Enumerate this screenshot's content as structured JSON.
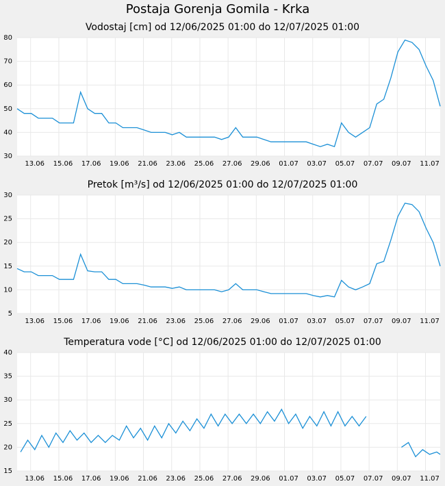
{
  "title": "Postaja Gorenja Gomila - Krka",
  "chart_data": [
    {
      "type": "line",
      "title": "Vodostaj [cm] od 12/06/2025 01:00 do 12/07/2025 01:00",
      "x": [
        "2025-06-12T01:00",
        "2025-06-12T13:00",
        "2025-06-13T01:00",
        "2025-06-13T13:00",
        "2025-06-14T01:00",
        "2025-06-14T13:00",
        "2025-06-15T01:00",
        "2025-06-15T13:00",
        "2025-06-16T01:00",
        "2025-06-16T13:00",
        "2025-06-17T01:00",
        "2025-06-17T13:00",
        "2025-06-18T01:00",
        "2025-06-18T13:00",
        "2025-06-19T01:00",
        "2025-06-19T13:00",
        "2025-06-20T01:00",
        "2025-06-20T13:00",
        "2025-06-21T01:00",
        "2025-06-21T13:00",
        "2025-06-22T01:00",
        "2025-06-22T13:00",
        "2025-06-23T01:00",
        "2025-06-23T13:00",
        "2025-06-24T01:00",
        "2025-06-24T13:00",
        "2025-06-25T01:00",
        "2025-06-25T13:00",
        "2025-06-26T01:00",
        "2025-06-26T13:00",
        "2025-06-27T01:00",
        "2025-06-27T13:00",
        "2025-06-28T01:00",
        "2025-06-28T13:00",
        "2025-06-29T01:00",
        "2025-06-29T13:00",
        "2025-06-30T01:00",
        "2025-06-30T13:00",
        "2025-07-01T01:00",
        "2025-07-01T13:00",
        "2025-07-02T01:00",
        "2025-07-02T13:00",
        "2025-07-03T01:00",
        "2025-07-03T13:00",
        "2025-07-04T01:00",
        "2025-07-04T13:00",
        "2025-07-05T01:00",
        "2025-07-05T13:00",
        "2025-07-06T01:00",
        "2025-07-06T13:00",
        "2025-07-07T01:00",
        "2025-07-07T13:00",
        "2025-07-08T01:00",
        "2025-07-08T13:00",
        "2025-07-09T01:00",
        "2025-07-09T13:00",
        "2025-07-10T01:00",
        "2025-07-10T13:00",
        "2025-07-11T01:00",
        "2025-07-11T13:00",
        "2025-07-12T01:00"
      ],
      "series": [
        {
          "color": "#1a8fd6",
          "values": [
            50,
            48,
            48,
            46,
            46,
            46,
            44,
            44,
            44,
            57,
            50,
            48,
            48,
            44,
            44,
            42,
            42,
            42,
            41,
            40,
            40,
            40,
            39,
            40,
            38,
            38,
            38,
            38,
            38,
            37,
            38,
            42,
            38,
            38,
            38,
            37,
            36,
            36,
            36,
            36,
            36,
            36,
            35,
            34,
            35,
            34,
            44,
            40,
            38,
            40,
            42,
            52,
            54,
            63,
            74,
            79,
            78,
            75,
            68,
            62,
            51
          ]
        }
      ],
      "xlim": [
        "2025-06-12T01:00",
        "2025-07-12T01:00"
      ],
      "xticks": [
        {
          "value": "2025-06-13T00:00",
          "label": "13.06"
        },
        {
          "value": "2025-06-15T00:00",
          "label": "15.06"
        },
        {
          "value": "2025-06-17T00:00",
          "label": "17.06"
        },
        {
          "value": "2025-06-19T00:00",
          "label": "19.06"
        },
        {
          "value": "2025-06-21T00:00",
          "label": "21.06"
        },
        {
          "value": "2025-06-23T00:00",
          "label": "23.06"
        },
        {
          "value": "2025-06-25T00:00",
          "label": "25.06"
        },
        {
          "value": "2025-06-27T00:00",
          "label": "27.06"
        },
        {
          "value": "2025-06-29T00:00",
          "label": "29.06"
        },
        {
          "value": "2025-07-01T00:00",
          "label": "01.07"
        },
        {
          "value": "2025-07-03T00:00",
          "label": "03.07"
        },
        {
          "value": "2025-07-05T00:00",
          "label": "05.07"
        },
        {
          "value": "2025-07-07T00:00",
          "label": "07.07"
        },
        {
          "value": "2025-07-09T00:00",
          "label": "09.07"
        },
        {
          "value": "2025-07-11T00:00",
          "label": "11.07"
        }
      ],
      "ylim": [
        30,
        80
      ],
      "yticks": [
        30,
        40,
        50,
        60,
        70,
        80
      ],
      "grid": true
    },
    {
      "type": "line",
      "title": "Pretok [m³/s] od 12/06/2025 01:00 do 12/07/2025 01:00",
      "x": [
        "2025-06-12T01:00",
        "2025-06-12T13:00",
        "2025-06-13T01:00",
        "2025-06-13T13:00",
        "2025-06-14T01:00",
        "2025-06-14T13:00",
        "2025-06-15T01:00",
        "2025-06-15T13:00",
        "2025-06-16T01:00",
        "2025-06-16T13:00",
        "2025-06-17T01:00",
        "2025-06-17T13:00",
        "2025-06-18T01:00",
        "2025-06-18T13:00",
        "2025-06-19T01:00",
        "2025-06-19T13:00",
        "2025-06-20T01:00",
        "2025-06-20T13:00",
        "2025-06-21T01:00",
        "2025-06-21T13:00",
        "2025-06-22T01:00",
        "2025-06-22T13:00",
        "2025-06-23T01:00",
        "2025-06-23T13:00",
        "2025-06-24T01:00",
        "2025-06-24T13:00",
        "2025-06-25T01:00",
        "2025-06-25T13:00",
        "2025-06-26T01:00",
        "2025-06-26T13:00",
        "2025-06-27T01:00",
        "2025-06-27T13:00",
        "2025-06-28T01:00",
        "2025-06-28T13:00",
        "2025-06-29T01:00",
        "2025-06-29T13:00",
        "2025-06-30T01:00",
        "2025-06-30T13:00",
        "2025-07-01T01:00",
        "2025-07-01T13:00",
        "2025-07-02T01:00",
        "2025-07-02T13:00",
        "2025-07-03T01:00",
        "2025-07-03T13:00",
        "2025-07-04T01:00",
        "2025-07-04T13:00",
        "2025-07-05T01:00",
        "2025-07-05T13:00",
        "2025-07-06T01:00",
        "2025-07-06T13:00",
        "2025-07-07T01:00",
        "2025-07-07T13:00",
        "2025-07-08T01:00",
        "2025-07-08T13:00",
        "2025-07-09T01:00",
        "2025-07-09T13:00",
        "2025-07-10T01:00",
        "2025-07-10T13:00",
        "2025-07-11T01:00",
        "2025-07-11T13:00",
        "2025-07-12T01:00"
      ],
      "series": [
        {
          "color": "#1a8fd6",
          "values": [
            14.5,
            13.8,
            13.8,
            13,
            13,
            13,
            12.2,
            12.2,
            12.2,
            17.5,
            14,
            13.8,
            13.8,
            12.2,
            12.2,
            11.3,
            11.3,
            11.3,
            11,
            10.6,
            10.6,
            10.6,
            10.3,
            10.6,
            10,
            10,
            10,
            10,
            10,
            9.6,
            10,
            11.3,
            10,
            10,
            10,
            9.6,
            9.2,
            9.2,
            9.2,
            9.2,
            9.2,
            9.2,
            8.8,
            8.5,
            8.8,
            8.5,
            12,
            10.6,
            10,
            10.6,
            11.3,
            15.5,
            16,
            20.5,
            25.5,
            28.3,
            28,
            26.5,
            23,
            20,
            15
          ]
        }
      ],
      "xlim": [
        "2025-06-12T01:00",
        "2025-07-12T01:00"
      ],
      "xticks": [
        {
          "value": "2025-06-13T00:00",
          "label": "13.06"
        },
        {
          "value": "2025-06-15T00:00",
          "label": "15.06"
        },
        {
          "value": "2025-06-17T00:00",
          "label": "17.06"
        },
        {
          "value": "2025-06-19T00:00",
          "label": "19.06"
        },
        {
          "value": "2025-06-21T00:00",
          "label": "21.06"
        },
        {
          "value": "2025-06-23T00:00",
          "label": "23.06"
        },
        {
          "value": "2025-06-25T00:00",
          "label": "25.06"
        },
        {
          "value": "2025-06-27T00:00",
          "label": "27.06"
        },
        {
          "value": "2025-06-29T00:00",
          "label": "29.06"
        },
        {
          "value": "2025-07-01T00:00",
          "label": "01.07"
        },
        {
          "value": "2025-07-03T00:00",
          "label": "03.07"
        },
        {
          "value": "2025-07-05T00:00",
          "label": "05.07"
        },
        {
          "value": "2025-07-07T00:00",
          "label": "07.07"
        },
        {
          "value": "2025-07-09T00:00",
          "label": "09.07"
        },
        {
          "value": "2025-07-11T00:00",
          "label": "11.07"
        }
      ],
      "ylim": [
        5,
        30
      ],
      "yticks": [
        5,
        10,
        15,
        20,
        25,
        30
      ],
      "grid": true
    },
    {
      "type": "line",
      "title": "Temperatura vode [°C] od 12/06/2025 01:00 do 12/07/2025 01:00",
      "x": [
        "2025-06-12T07:00",
        "2025-06-12T19:00",
        "2025-06-13T07:00",
        "2025-06-13T19:00",
        "2025-06-14T07:00",
        "2025-06-14T19:00",
        "2025-06-15T07:00",
        "2025-06-15T19:00",
        "2025-06-16T07:00",
        "2025-06-16T19:00",
        "2025-06-17T07:00",
        "2025-06-17T19:00",
        "2025-06-18T07:00",
        "2025-06-18T19:00",
        "2025-06-19T07:00",
        "2025-06-19T19:00",
        "2025-06-20T07:00",
        "2025-06-20T19:00",
        "2025-06-21T07:00",
        "2025-06-21T19:00",
        "2025-06-22T07:00",
        "2025-06-22T19:00",
        "2025-06-23T07:00",
        "2025-06-23T19:00",
        "2025-06-24T07:00",
        "2025-06-24T19:00",
        "2025-06-25T07:00",
        "2025-06-25T19:00",
        "2025-06-26T07:00",
        "2025-06-26T19:00",
        "2025-06-27T07:00",
        "2025-06-27T19:00",
        "2025-06-28T07:00",
        "2025-06-28T19:00",
        "2025-06-29T07:00",
        "2025-06-29T19:00",
        "2025-06-30T07:00",
        "2025-06-30T19:00",
        "2025-07-01T07:00",
        "2025-07-01T19:00",
        "2025-07-02T07:00",
        "2025-07-02T19:00",
        "2025-07-03T07:00",
        "2025-07-03T19:00",
        "2025-07-04T07:00",
        "2025-07-04T19:00",
        "2025-07-05T07:00",
        "2025-07-05T19:00",
        "2025-07-06T07:00",
        "2025-07-06T19:00",
        "2025-07-07T07:00",
        "2025-07-07T19:00",
        "2025-07-08T07:00",
        "2025-07-08T19:00",
        "2025-07-09T07:00",
        "2025-07-09T19:00",
        "2025-07-10T07:00",
        "2025-07-10T19:00",
        "2025-07-11T07:00",
        "2025-07-11T19:00",
        "2025-07-12T01:00"
      ],
      "series": [
        {
          "color": "#1a8fd6",
          "values": [
            19,
            21.5,
            19.5,
            22.5,
            20,
            23,
            21,
            23.5,
            21.5,
            23,
            21,
            22.5,
            21,
            22.5,
            21.5,
            24.5,
            22,
            24,
            21.5,
            24.5,
            22,
            25,
            23,
            25.5,
            23.5,
            26,
            24,
            27,
            24.5,
            27,
            25,
            27,
            25,
            27,
            25,
            27.5,
            25.5,
            28,
            25,
            27,
            24,
            26.5,
            24.5,
            27.5,
            24.5,
            27.5,
            24.5,
            26.5,
            24.5,
            26.5,
            null,
            null,
            null,
            null,
            20,
            21,
            18,
            19.5,
            18.5,
            19,
            18.5
          ]
        }
      ],
      "xlim": [
        "2025-06-12T01:00",
        "2025-07-12T01:00"
      ],
      "xticks": [
        {
          "value": "2025-06-13T00:00",
          "label": "13.06"
        },
        {
          "value": "2025-06-15T00:00",
          "label": "15.06"
        },
        {
          "value": "2025-06-17T00:00",
          "label": "17.06"
        },
        {
          "value": "2025-06-19T00:00",
          "label": "19.06"
        },
        {
          "value": "2025-06-21T00:00",
          "label": "21.06"
        },
        {
          "value": "2025-06-23T00:00",
          "label": "23.06"
        },
        {
          "value": "2025-06-25T00:00",
          "label": "25.06"
        },
        {
          "value": "2025-06-27T00:00",
          "label": "27.06"
        },
        {
          "value": "2025-06-29T00:00",
          "label": "29.06"
        },
        {
          "value": "2025-07-01T00:00",
          "label": "01.07"
        },
        {
          "value": "2025-07-03T00:00",
          "label": "03.07"
        },
        {
          "value": "2025-07-05T00:00",
          "label": "05.07"
        },
        {
          "value": "2025-07-07T00:00",
          "label": "07.07"
        },
        {
          "value": "2025-07-09T00:00",
          "label": "09.07"
        },
        {
          "value": "2025-07-11T00:00",
          "label": "11.07"
        }
      ],
      "ylim": [
        15,
        40
      ],
      "yticks": [
        15,
        20,
        25,
        30,
        35,
        40
      ],
      "grid": true
    }
  ]
}
